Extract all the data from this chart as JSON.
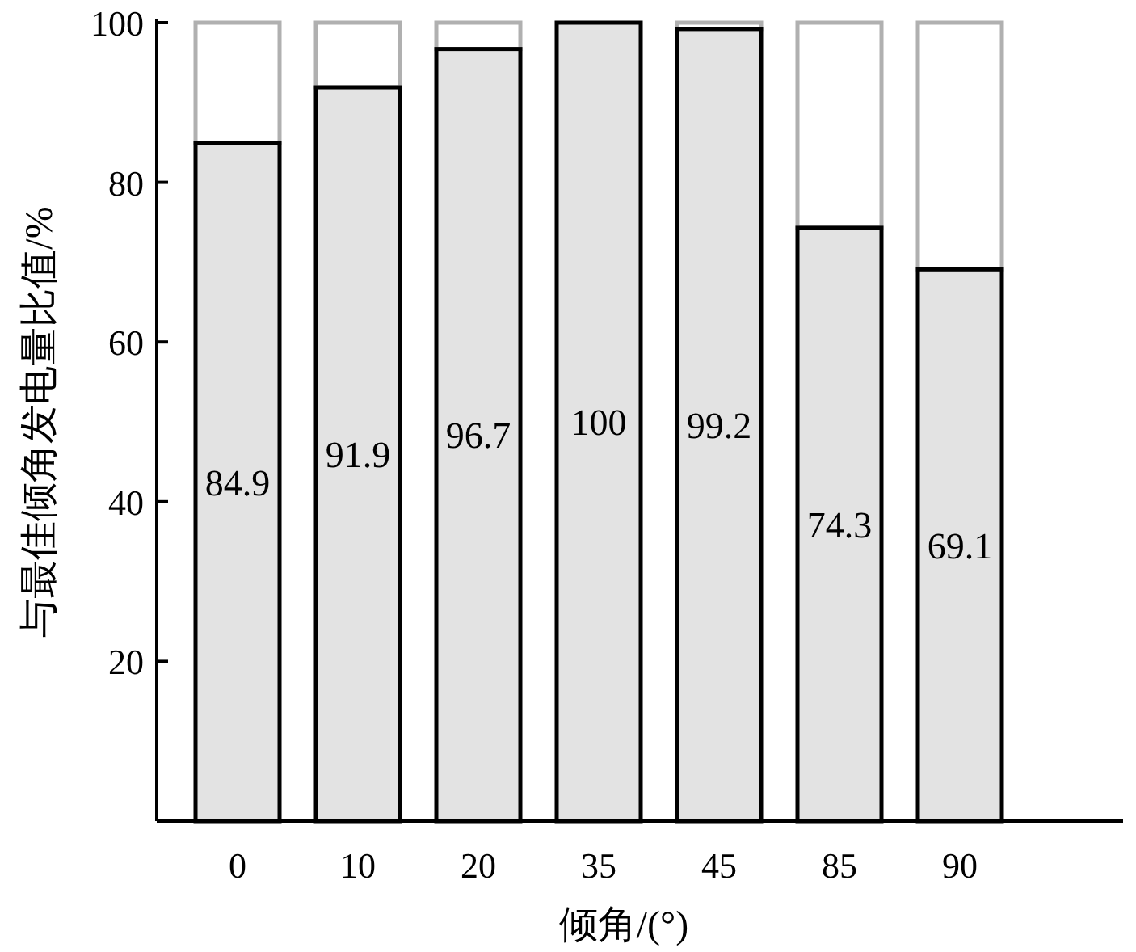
{
  "chart_data": {
    "type": "bar",
    "stacked": true,
    "xlabel": "倾角/(°)",
    "ylabel": "与最佳倾角发电量比值/%",
    "categories": [
      "0",
      "10",
      "20",
      "35",
      "45",
      "85",
      "90"
    ],
    "series": [
      {
        "color": "#e3e3e3",
        "values": [
          84.9,
          91.9,
          96.7,
          100,
          99.2,
          74.3,
          69.1
        ],
        "value_labels": [
          "84.9",
          "91.9",
          "96.7",
          "100",
          "99.2",
          "74.3",
          "69.1"
        ]
      },
      {
        "color": "#ffffff",
        "values": [
          15.1,
          8.1,
          3.3,
          0,
          0.8,
          25.7,
          30.9
        ]
      }
    ],
    "ylim": [
      0,
      100
    ],
    "yticks": [
      {
        "value": 0,
        "label": null
      },
      20,
      40,
      60,
      80,
      100
    ]
  }
}
